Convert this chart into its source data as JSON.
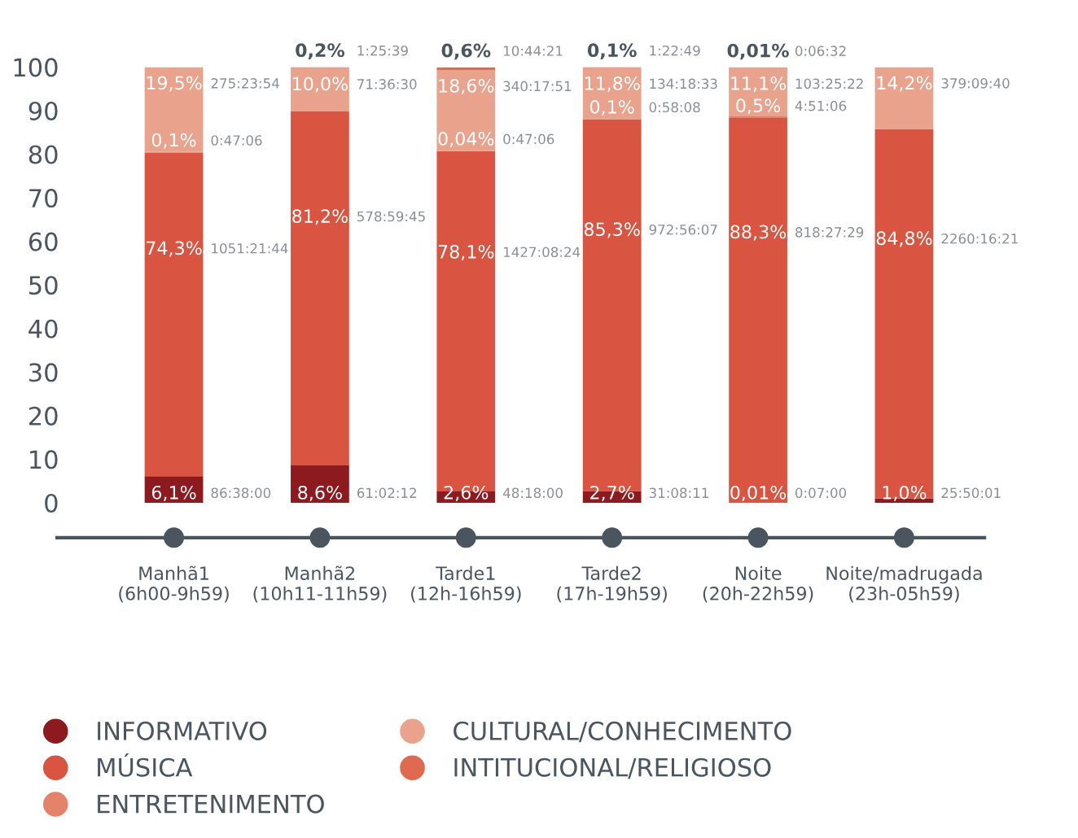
{
  "chart_data": {
    "type": "bar",
    "stacked": true,
    "categories": [
      "Manhã1\n(6h00-9h59)",
      "Manhã2\n(10h11-11h59)",
      "Tarde1\n(12h-16h59)",
      "Tarde2\n(17h-19h59)",
      "Noite\n(20h-22h59)",
      "Noite/madrugada\n(23h-05h59)"
    ],
    "series": [
      {
        "name": "INFORMATIVO",
        "color": "#8c1a1f",
        "values": [
          6.1,
          8.6,
          2.6,
          2.7,
          0.01,
          1.0
        ],
        "value_labels": [
          "6,1%",
          "8,6%",
          "2,6%",
          "2,7%",
          "0,01%",
          "1,0%"
        ]
      },
      {
        "name": "MÚSICA",
        "color": "#d95541",
        "values": [
          74.3,
          81.2,
          78.1,
          85.3,
          88.3,
          84.8
        ],
        "value_labels": [
          "74,3%",
          "81,2%",
          "78,1%",
          "85,3%",
          "88,3%",
          "84,8%"
        ]
      },
      {
        "name": "ENTRETENIMENTO",
        "color": "#e5826a",
        "values": [
          0.1,
          null,
          0.04,
          0.1,
          0.5,
          null
        ],
        "value_labels": [
          "0,1%",
          null,
          "0,04%",
          "0,1%",
          "0,5%",
          null
        ]
      },
      {
        "name": "CULTURAL/CONHECIMENTO",
        "color": "#e9a38c",
        "values": [
          19.5,
          10.0,
          18.6,
          11.8,
          11.1,
          14.2
        ],
        "value_labels": [
          "19,5%",
          "10,0%",
          "18,6%",
          "11,8%",
          "11,1%",
          "14,2%"
        ]
      },
      {
        "name": "INTITUCIONAL/RELIGIOSO",
        "color": "#df6a50",
        "values": [
          null,
          0.2,
          0.6,
          0.1,
          0.01,
          null
        ],
        "value_labels": [
          null,
          "0,2%",
          "0,6%",
          "0,1%",
          "0,01%",
          null
        ]
      }
    ],
    "ylim": [
      0,
      100
    ],
    "yticks": [
      0,
      10,
      20,
      30,
      40,
      50,
      60,
      70,
      80,
      90,
      100
    ],
    "grid": false,
    "legend": "bottom",
    "annotations": [
      "86:38:00",
      "1051:21:44",
      "0:47:06",
      "275:23:54",
      "61:02:12",
      "578:59:45",
      "71:36:30",
      "1:25:39",
      "48:18:00",
      "1427:08:24",
      "0:47:06",
      "340:17:51",
      "10:44:21",
      "31:08:11",
      "972:56:07",
      "0:58:08",
      "134:18:33",
      "1:22:49",
      "0:07:00",
      "818:27:29",
      "4:51:06",
      "103:25:22",
      "0:06:32",
      "25:50:01",
      "2260:16:21",
      "379:09:40"
    ]
  }
}
